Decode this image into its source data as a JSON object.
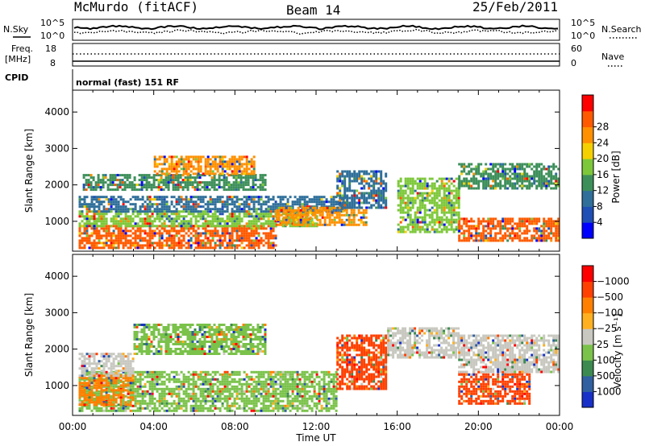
{
  "header": {
    "station": "McMurdo (fitACF)",
    "beam": "Beam 14",
    "date": "25/Feb/2011"
  },
  "strip": {
    "nsky_label": "N.Sky",
    "nsearch_label": "N.Search",
    "noise_ticks": [
      "10^5",
      "10^0"
    ],
    "freq_label_1": "Freq.",
    "freq_label_2": "[MHz]",
    "freq_ticks": [
      "18",
      "8"
    ],
    "nave_label": "Nave",
    "nave_ticks": [
      "60",
      "0"
    ],
    "cpid_label": "CPID",
    "cpid_value": "normal (fast) 151 RF"
  },
  "chart_data": [
    {
      "type": "heatmap",
      "title": "",
      "xlabel": "",
      "ylabel": "Slant Range [km]",
      "x_ticks": [
        "00:00",
        "04:00",
        "08:00",
        "12:00",
        "16:00",
        "20:00",
        "00:00"
      ],
      "y_ticks": [
        1000,
        2000,
        3000,
        4000
      ],
      "ylim": [
        180,
        4600
      ],
      "xlim_hours": [
        0,
        24
      ],
      "colorbar": {
        "label": "Power [dB]",
        "ticks": [
          "4",
          "8",
          "12",
          "16",
          "20",
          "24",
          "28"
        ],
        "colors": [
          "#0000ff",
          "#1f4fb4",
          "#2f6f9a",
          "#3d8f5a",
          "#7dc83a",
          "#f5d000",
          "#ff9000",
          "#ff5a00",
          "#ff0000"
        ]
      },
      "echo_bands": [
        {
          "t0": 0.3,
          "t1": 10.0,
          "r0": 300,
          "r1": 900,
          "level": "28"
        },
        {
          "t0": 0.3,
          "t1": 12.0,
          "r0": 900,
          "r1": 1300,
          "level": "16"
        },
        {
          "t0": 0.3,
          "t1": 13.5,
          "r0": 1300,
          "r1": 1700,
          "level": "8"
        },
        {
          "t0": 0.5,
          "t1": 9.5,
          "r0": 1900,
          "r1": 2300,
          "level": "12"
        },
        {
          "t0": 4.0,
          "t1": 9.0,
          "r0": 2300,
          "r1": 2800,
          "level": "24"
        },
        {
          "t0": 10.0,
          "t1": 14.5,
          "r0": 900,
          "r1": 1400,
          "level": "24"
        },
        {
          "t0": 13.0,
          "t1": 15.5,
          "r0": 1400,
          "r1": 2400,
          "level": "8"
        },
        {
          "t0": 16.0,
          "t1": 19.0,
          "r0": 700,
          "r1": 2200,
          "level": "16"
        },
        {
          "t0": 19.0,
          "t1": 24.0,
          "r0": 500,
          "r1": 1100,
          "level": "28"
        },
        {
          "t0": 19.0,
          "t1": 24.0,
          "r0": 1900,
          "r1": 2600,
          "level": "12"
        }
      ]
    },
    {
      "type": "heatmap",
      "title": "",
      "xlabel": "Time UT",
      "ylabel": "Slant Range [km]",
      "x_ticks": [
        "00:00",
        "04:00",
        "08:00",
        "12:00",
        "16:00",
        "20:00",
        "00:00"
      ],
      "y_ticks": [
        1000,
        2000,
        3000,
        4000
      ],
      "ylim": [
        180,
        4600
      ],
      "xlim_hours": [
        0,
        24
      ],
      "colorbar": {
        "label": "Velocity [m s⁻¹]",
        "ticks": [
          "1000",
          "500",
          "100",
          "25",
          "−25",
          "−100",
          "−500",
          "−1000"
        ],
        "colors": [
          "#1830c8",
          "#3060a0",
          "#3c8a50",
          "#7ac24a",
          "#c8c8c0",
          "#ffb020",
          "#ff8000",
          "#ff4000",
          "#ff0000"
        ]
      },
      "echo_bands": [
        {
          "t0": 0.3,
          "t1": 13.0,
          "r0": 300,
          "r1": 1400,
          "level": "100"
        },
        {
          "t0": 0.3,
          "t1": 3.0,
          "r0": 500,
          "r1": 1300,
          "level": "-100"
        },
        {
          "t0": 0.3,
          "t1": 3.0,
          "r0": 1300,
          "r1": 1900,
          "level": "25"
        },
        {
          "t0": 3.0,
          "t1": 9.5,
          "r0": 1900,
          "r1": 2700,
          "level": "100"
        },
        {
          "t0": 13.0,
          "t1": 15.5,
          "r0": 900,
          "r1": 2400,
          "level": "-500"
        },
        {
          "t0": 15.5,
          "t1": 19.0,
          "r0": 1800,
          "r1": 2600,
          "level": "25"
        },
        {
          "t0": 19.0,
          "t1": 22.5,
          "r0": 500,
          "r1": 1400,
          "level": "-500"
        },
        {
          "t0": 19.0,
          "t1": 24.0,
          "r0": 1400,
          "r1": 2400,
          "level": "25"
        }
      ]
    }
  ]
}
